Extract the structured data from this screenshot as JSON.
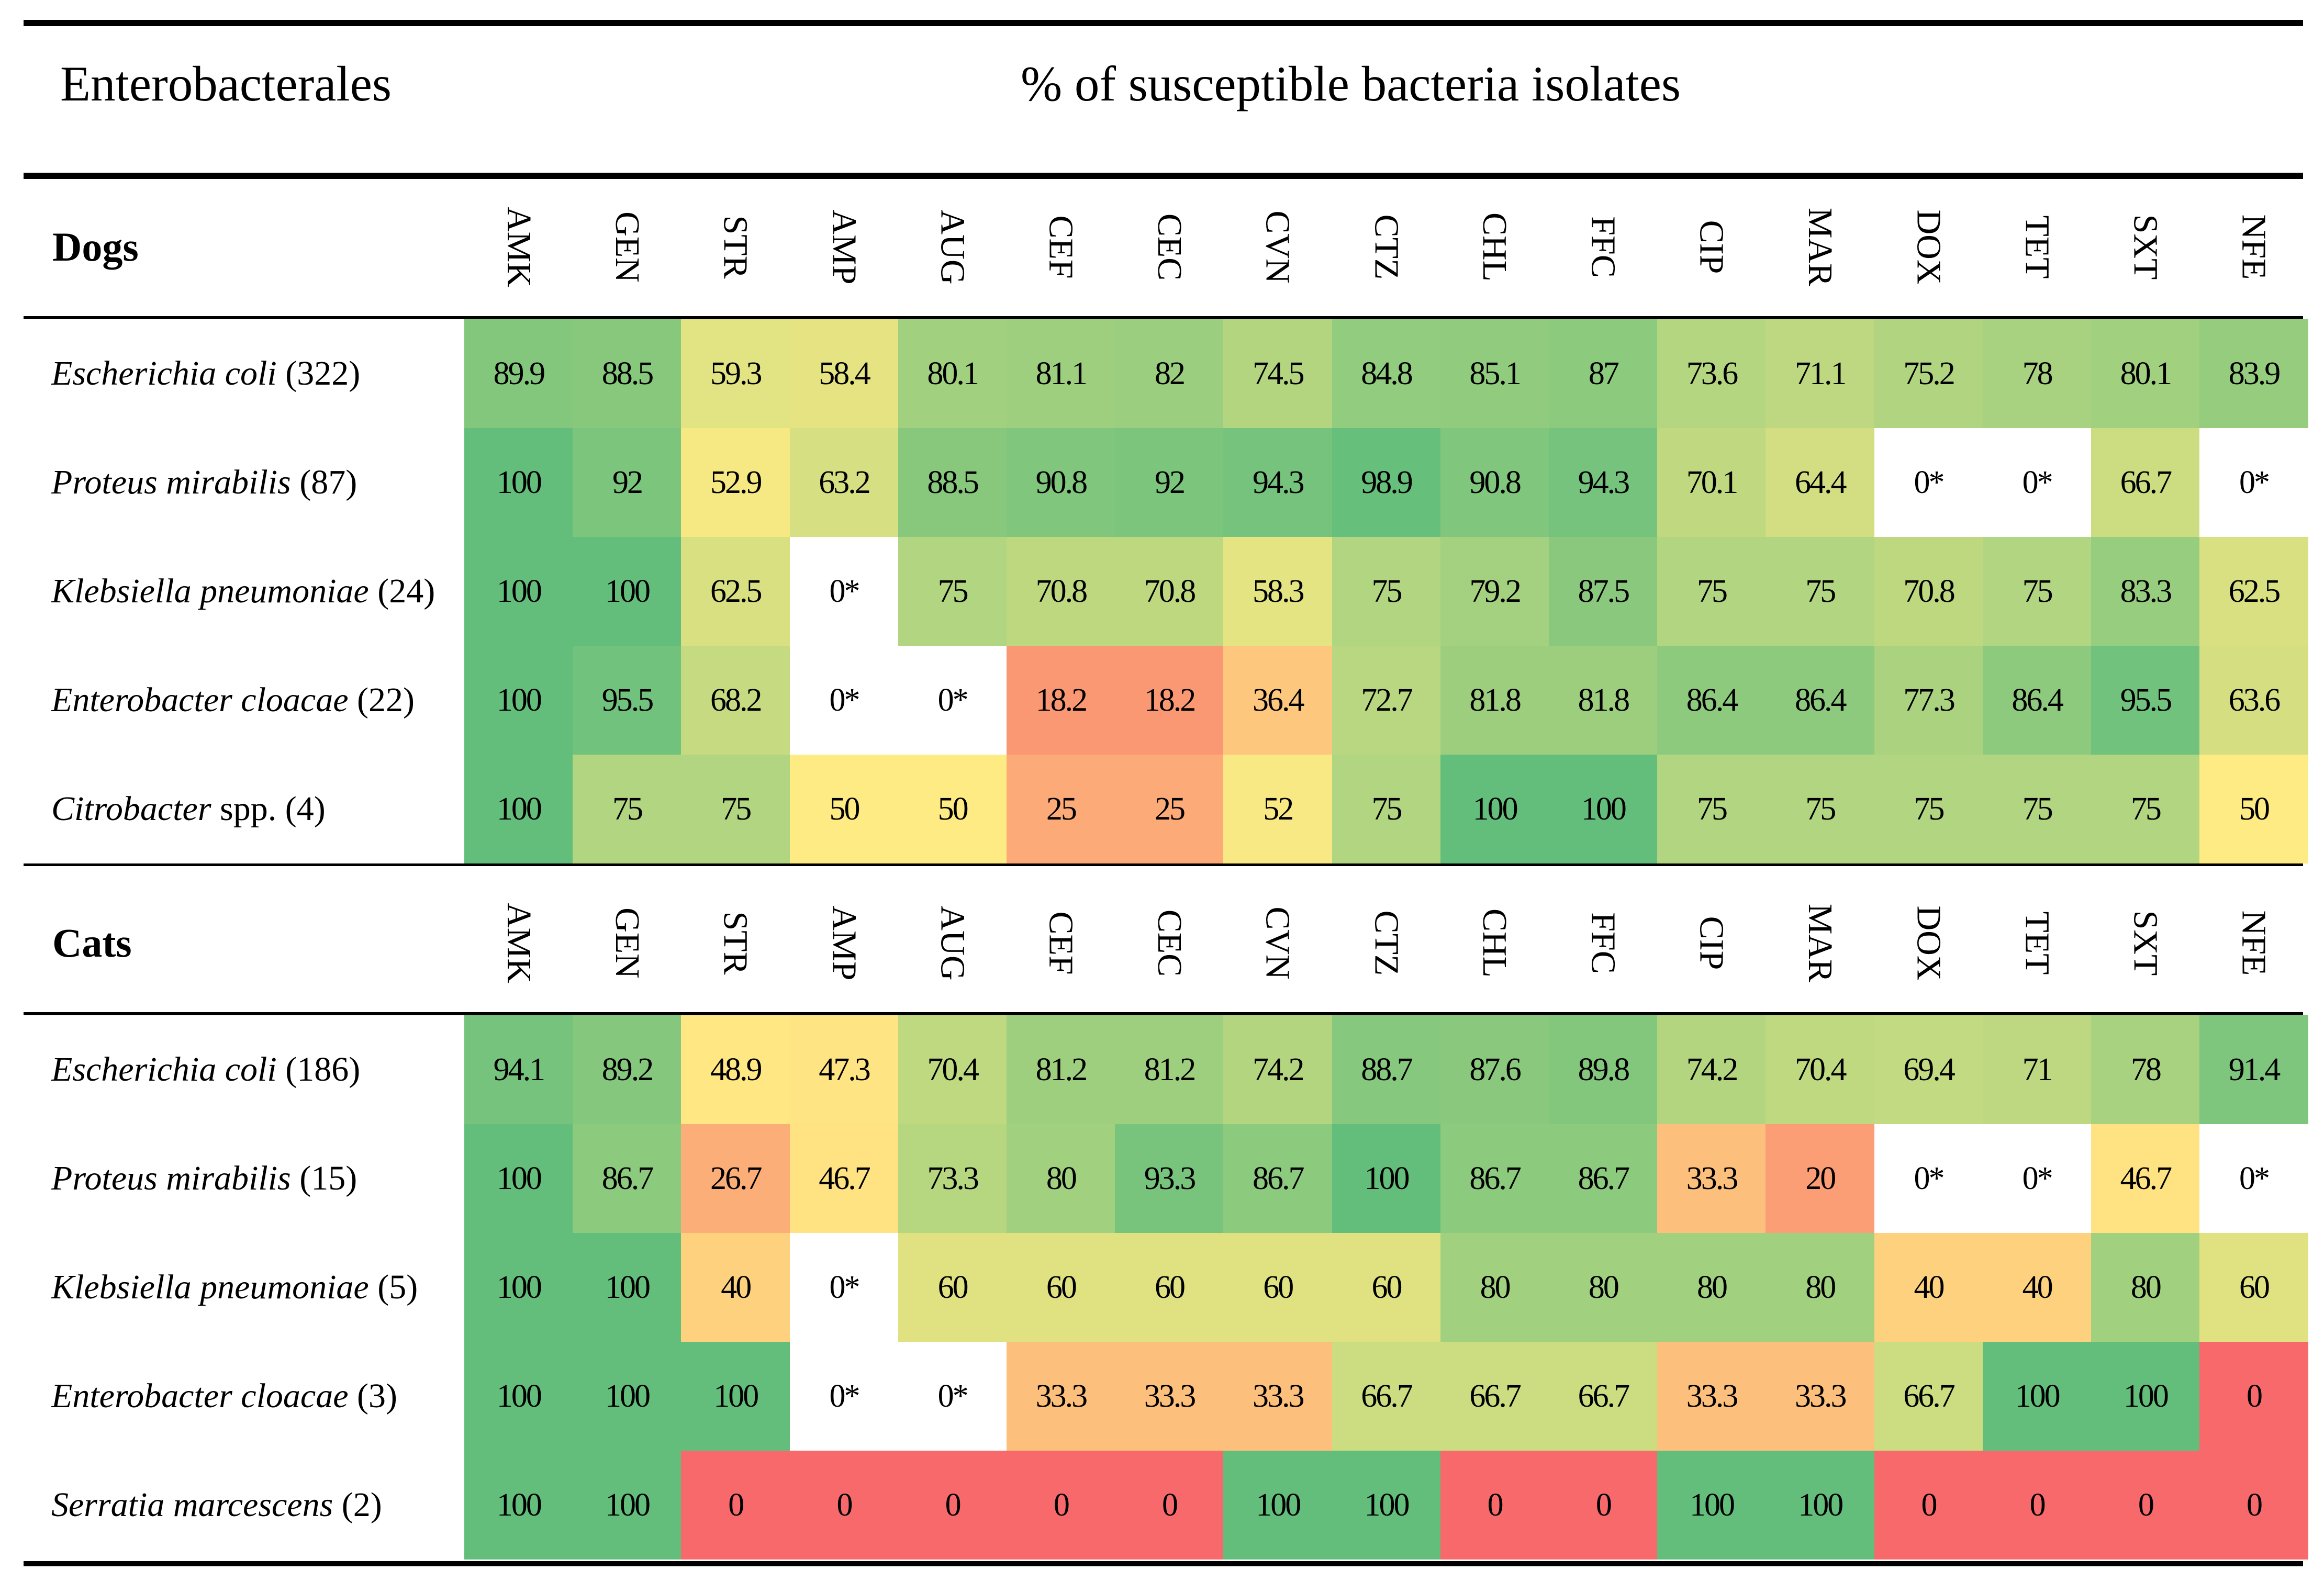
{
  "chart_data": {
    "type": "table",
    "heatmap": true,
    "title_left": "Enterobacterales",
    "title": "% of susceptible bacteria isolates",
    "columns": [
      "AMK",
      "GEN",
      "STR",
      "AMP",
      "AUG",
      "CEF",
      "CEC",
      "CVN",
      "CTZ",
      "CHL",
      "FFC",
      "CIP",
      "MAR",
      "DOX",
      "TET",
      "SXT",
      "NFE"
    ],
    "sections": [
      {
        "name": "Dogs",
        "rows": [
          {
            "species": "Escherichia coli",
            "count": " (322)",
            "values": [
              "89.9",
              "88.5",
              "59.3",
              "58.4",
              "80.1",
              "81.1",
              "82",
              "74.5",
              "84.8",
              "85.1",
              "87",
              "73.6",
              "71.1",
              "75.2",
              "78",
              "80.1",
              "83.9"
            ]
          },
          {
            "species": "Proteus mirabilis",
            "count": " (87)",
            "values": [
              "100",
              "92",
              "52.9",
              "63.2",
              "88.5",
              "90.8",
              "92",
              "94.3",
              "98.9",
              "90.8",
              "94.3",
              "70.1",
              "64.4",
              "0*",
              "0*",
              "66.7",
              "0*"
            ]
          },
          {
            "species": "Klebsiella pneumoniae",
            "count": " (24)",
            "values": [
              "100",
              "100",
              "62.5",
              "0*",
              "75",
              "70.8",
              "70.8",
              "58.3",
              "75",
              "79.2",
              "87.5",
              "75",
              "75",
              "70.8",
              "75",
              "83.3",
              "62.5"
            ]
          },
          {
            "species": "Enterobacter cloacae",
            "count": " (22)",
            "values": [
              "100",
              "95.5",
              "68.2",
              "0*",
              "0*",
              "18.2",
              "18.2",
              "36.4",
              "72.7",
              "81.8",
              "81.8",
              "86.4",
              "86.4",
              "77.3",
              "86.4",
              "95.5",
              "63.6"
            ]
          },
          {
            "species": "Citrobacter",
            "count": " spp. (4)",
            "values": [
              "100",
              "75",
              "75",
              "50",
              "50",
              "25",
              "25",
              "52",
              "75",
              "100",
              "100",
              "75",
              "75",
              "75",
              "75",
              "75",
              "50"
            ]
          }
        ]
      },
      {
        "name": "Cats",
        "rows": [
          {
            "species": "Escherichia coli",
            "count": " (186)",
            "values": [
              "94.1",
              "89.2",
              "48.9",
              "47.3",
              "70.4",
              "81.2",
              "81.2",
              "74.2",
              "88.7",
              "87.6",
              "89.8",
              "74.2",
              "70.4",
              "69.4",
              "71",
              "78",
              "91.4"
            ]
          },
          {
            "species": "Proteus mirabilis",
            "count": " (15)",
            "values": [
              "100",
              "86.7",
              "26.7",
              "46.7",
              "73.3",
              "80",
              "93.3",
              "86.7",
              "100",
              "86.7",
              "86.7",
              "33.3",
              "20",
              "0*",
              "0*",
              "46.7",
              "0*"
            ]
          },
          {
            "species": "Klebsiella pneumoniae",
            "count": " (5)",
            "values": [
              "100",
              "100",
              "40",
              "0*",
              "60",
              "60",
              "60",
              "60",
              "60",
              "80",
              "80",
              "80",
              "80",
              "40",
              "40",
              "80",
              "60"
            ]
          },
          {
            "species": "Enterobacter cloacae",
            "count": " (3)",
            "values": [
              "100",
              "100",
              "100",
              "0*",
              "0*",
              "33.3",
              "33.3",
              "33.3",
              "66.7",
              "66.7",
              "66.7",
              "33.3",
              "33.3",
              "66.7",
              "100",
              "100",
              "0"
            ]
          },
          {
            "species": "Serratia marcescens",
            "count": " (2)",
            "values": [
              "100",
              "100",
              "0",
              "0",
              "0",
              "0",
              "0",
              "100",
              "100",
              "0",
              "0",
              "100",
              "100",
              "0",
              "0",
              "0",
              "0"
            ]
          }
        ]
      }
    ],
    "colors": {
      "low": "#f8696b",
      "mid": "#ffeb84",
      "high": "#63be7b",
      "na": "#ffffff"
    },
    "na_marker": "0*"
  }
}
